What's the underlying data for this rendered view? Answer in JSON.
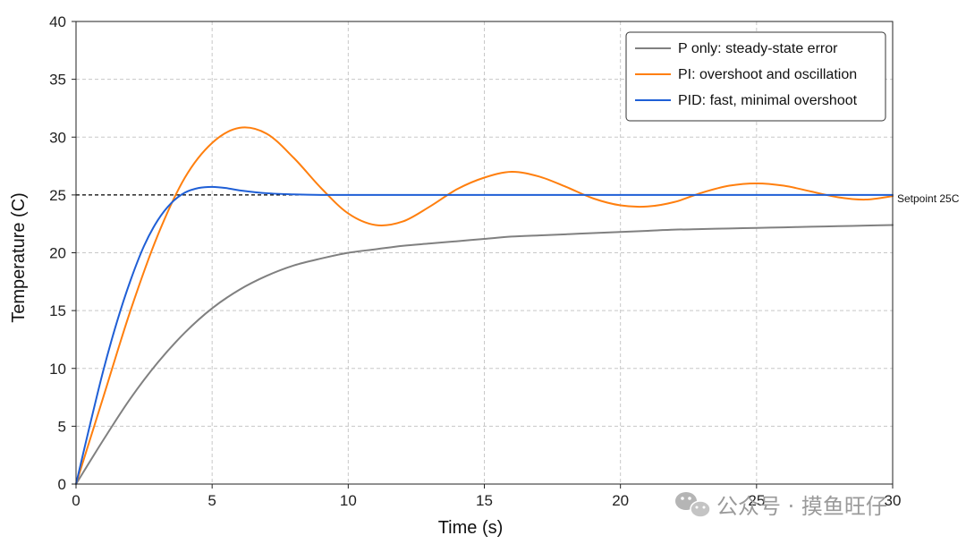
{
  "chart_data": {
    "type": "line",
    "title": "",
    "xlabel": "Time (s)",
    "ylabel": "Temperature (C)",
    "xlim": [
      0,
      30
    ],
    "ylim": [
      0,
      40
    ],
    "x_ticks": [
      "0",
      "5",
      "10",
      "15",
      "20",
      "25",
      "30"
    ],
    "y_ticks": [
      "0",
      "5",
      "10",
      "15",
      "20",
      "25",
      "30",
      "35",
      "40"
    ],
    "grid": true,
    "legend": "top-right",
    "setpoint": {
      "value": 25,
      "label": "Setpoint 25C",
      "color": "#000000"
    },
    "series": [
      {
        "name": "P only: steady-state error",
        "color": "#808080",
        "x": [
          0,
          1,
          2,
          3,
          4,
          5,
          6,
          7,
          8,
          9,
          10,
          11,
          12,
          13,
          14,
          15,
          16,
          17,
          18,
          19,
          20,
          21,
          22,
          23,
          24,
          25,
          26,
          27,
          28,
          29,
          30
        ],
        "y": [
          0,
          3.8,
          7.4,
          10.5,
          13.1,
          15.2,
          16.8,
          18.0,
          18.9,
          19.5,
          20.0,
          20.3,
          20.6,
          20.8,
          21.0,
          21.2,
          21.4,
          21.5,
          21.6,
          21.7,
          21.8,
          21.9,
          22.0,
          22.05,
          22.1,
          22.15,
          22.2,
          22.25,
          22.3,
          22.35,
          22.4
        ]
      },
      {
        "name": "PI: overshoot and oscillation",
        "color": "#ff7f0e",
        "x": [
          0,
          1,
          2,
          3,
          4,
          5,
          6,
          7,
          8,
          9,
          10,
          11,
          12,
          13,
          14,
          15,
          16,
          17,
          18,
          19,
          20,
          21,
          22,
          23,
          24,
          25,
          26,
          27,
          28,
          29,
          30
        ],
        "y": [
          0,
          7.5,
          15.0,
          21.5,
          26.5,
          29.5,
          30.8,
          30.3,
          28.2,
          25.6,
          23.4,
          22.4,
          22.7,
          24.0,
          25.5,
          26.5,
          27.0,
          26.6,
          25.7,
          24.7,
          24.1,
          24.0,
          24.4,
          25.2,
          25.8,
          26.0,
          25.8,
          25.3,
          24.8,
          24.6,
          24.9
        ]
      },
      {
        "name": "PID: fast, minimal overshoot",
        "color": "#1f5fd6",
        "x": [
          0,
          0.5,
          1,
          1.5,
          2,
          2.5,
          3,
          3.5,
          4,
          4.5,
          5,
          5.5,
          6,
          7,
          8,
          9,
          10,
          12,
          15,
          20,
          25,
          30
        ],
        "y": [
          0,
          5.0,
          9.8,
          14.0,
          17.6,
          20.6,
          22.8,
          24.3,
          25.2,
          25.6,
          25.7,
          25.6,
          25.4,
          25.15,
          25.05,
          25.0,
          25.0,
          25.0,
          25.0,
          25.0,
          25.0,
          25.0
        ]
      }
    ]
  },
  "watermark": {
    "text": "公众号 · 摸鱼旺仔"
  }
}
